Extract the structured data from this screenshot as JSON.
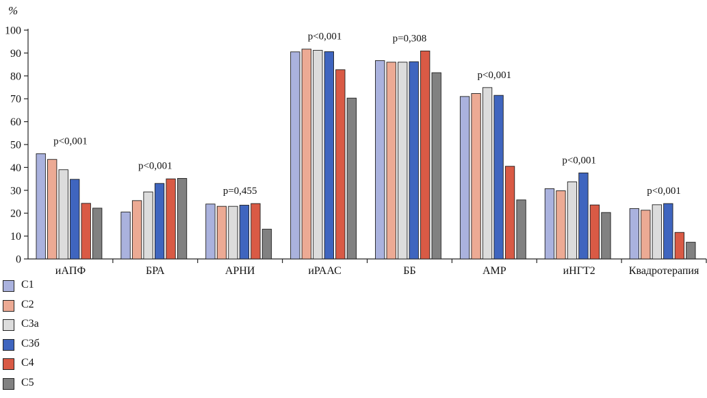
{
  "chart_data": {
    "type": "bar",
    "ylabel": "%",
    "ylim": [
      0,
      100
    ],
    "yticks": [
      0,
      10,
      20,
      30,
      40,
      50,
      60,
      70,
      80,
      90,
      100
    ],
    "categories": [
      "иАПФ",
      "БРА",
      "АРНИ",
      "иРААС",
      "ББ",
      "АМР",
      "иНГТ2",
      "Квадротерапия"
    ],
    "annotations": [
      "p<0,001",
      "p<0,001",
      "p=0,455",
      "p<0,001",
      "p=0,308",
      "p<0,001",
      "p<0,001",
      "p<0,001"
    ],
    "series": [
      {
        "name": "С1",
        "color": "#aab2de",
        "values": [
          46,
          20.5,
          24,
          90.5,
          86.7,
          71,
          30.7,
          22
        ]
      },
      {
        "name": "С2",
        "color": "#ecaa94",
        "values": [
          43.5,
          25.5,
          23,
          91.7,
          86,
          72.3,
          29.8,
          21.3
        ]
      },
      {
        "name": "С3а",
        "color": "#dcdcdc",
        "values": [
          39,
          29.3,
          23,
          91.2,
          86,
          74.9,
          33.7,
          23.7
        ]
      },
      {
        "name": "С3б",
        "color": "#3f65bf",
        "values": [
          34.8,
          33,
          23.5,
          90.6,
          86.2,
          71.5,
          37.6,
          24.2
        ]
      },
      {
        "name": "С4",
        "color": "#d95a45",
        "values": [
          24.3,
          35,
          24.2,
          82.7,
          90.9,
          40.5,
          23.6,
          11.6
        ]
      },
      {
        "name": "С5",
        "color": "#818181",
        "values": [
          22.2,
          35.2,
          13,
          70.3,
          81.4,
          25.8,
          20.3,
          7.3
        ]
      }
    ]
  }
}
